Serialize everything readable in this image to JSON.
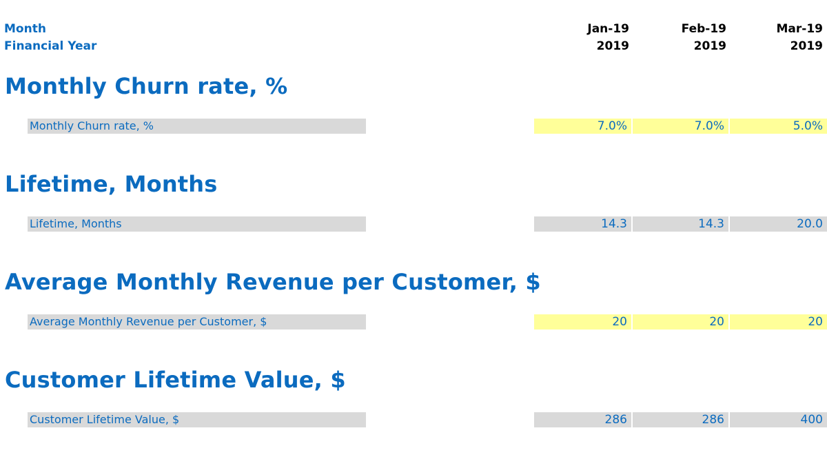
{
  "header": {
    "month_label": "Month",
    "fy_label": "Financial Year",
    "columns": [
      {
        "month": "Jan-19",
        "year": "2019"
      },
      {
        "month": "Feb-19",
        "year": "2019"
      },
      {
        "month": "Mar-19",
        "year": "2019"
      }
    ]
  },
  "sections": [
    {
      "title": "Monthly Churn rate, %",
      "row_label": "Monthly Churn rate, %",
      "cell_type": "input",
      "values": [
        "7.0%",
        "7.0%",
        "5.0%"
      ]
    },
    {
      "title": "Lifetime, Months",
      "row_label": "Lifetime, Months",
      "cell_type": "calculated",
      "values": [
        "14.3",
        "14.3",
        "20.0"
      ]
    },
    {
      "title": "Average Monthly Revenue per Customer, $",
      "row_label": "Average Monthly Revenue per Customer, $",
      "cell_type": "input",
      "values": [
        "20",
        "20",
        "20"
      ]
    },
    {
      "title": "Customer Lifetime Value, $",
      "row_label": "Customer Lifetime Value, $",
      "cell_type": "calculated",
      "values": [
        "286",
        "286",
        "400"
      ]
    }
  ],
  "colors": {
    "heading_blue": "#0b6bbf",
    "input_cell": "#ffff99",
    "calculated_cell": "#d9d9d9"
  }
}
